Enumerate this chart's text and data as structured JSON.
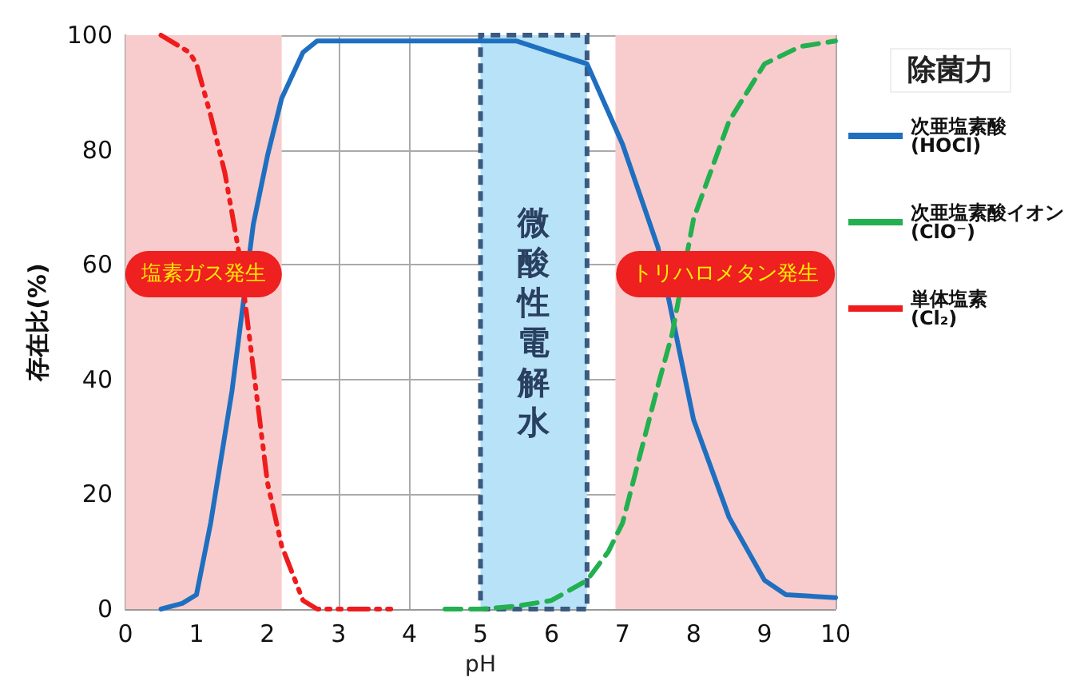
{
  "chart_data": {
    "type": "line",
    "xlabel": "pH",
    "ylabel": "存在比(%)",
    "legend_title": "除菌力",
    "xlim": [
      0,
      10
    ],
    "ylim": [
      0,
      100
    ],
    "xticks": [
      0,
      1,
      2,
      3,
      4,
      5,
      6,
      7,
      8,
      9,
      10
    ],
    "yticks": [
      0,
      20,
      40,
      60,
      80,
      100
    ],
    "grid": true,
    "legend": "right",
    "marker": "none",
    "series": [
      {
        "name": "次亜塩素酸\n(HOCl)",
        "color": "#1f6fc0",
        "line_style": "solid",
        "x": [
          0.5,
          0.8,
          1,
          1.2,
          1.5,
          1.8,
          2,
          2.2,
          2.5,
          2.7,
          3,
          4,
          5,
          5.5,
          6,
          6.5,
          7,
          7.5,
          8,
          8.5,
          9,
          9.3,
          10
        ],
        "values": [
          0,
          1,
          2.5,
          15,
          38,
          67,
          79,
          89,
          97,
          99,
          99,
          99,
          99,
          99,
          97,
          95,
          81,
          63,
          33,
          16,
          5,
          2.5,
          2
        ]
      },
      {
        "name": "次亜塩素酸イオン\n(ClO⁻)",
        "color": "#22b050",
        "line_style": "dashed",
        "x": [
          4.5,
          5,
          5.5,
          6,
          6.5,
          6.8,
          7,
          7.5,
          7.7,
          8,
          8.5,
          9,
          9.5,
          10
        ],
        "values": [
          0,
          0,
          0.5,
          1.5,
          5,
          10,
          15,
          39,
          48,
          68,
          85,
          95,
          98,
          99
        ]
      },
      {
        "name": "単体塩素\n(Cl₂)",
        "color": "#ee1c1c",
        "line_style": "dotted",
        "x": [
          0.5,
          0.9,
          1,
          1.2,
          1.4,
          1.6,
          1.8,
          2,
          2.2,
          2.5,
          2.7,
          3.8
        ],
        "values": [
          100,
          97,
          95,
          86,
          76,
          62,
          42,
          22,
          11,
          1.5,
          0,
          0
        ]
      }
    ],
    "bands": [
      {
        "axis": "x",
        "from": 0,
        "to": 2.2,
        "label": "塩素ガス発生",
        "color": "#f8cccc"
      },
      {
        "axis": "x",
        "from": 5,
        "to": 6.5,
        "label": "微酸性電解水",
        "color": "#b8e2f8"
      },
      {
        "axis": "x",
        "from": 6.9,
        "to": 10,
        "label": "トリハロメタン発生",
        "color": "#f8cccc"
      }
    ]
  }
}
